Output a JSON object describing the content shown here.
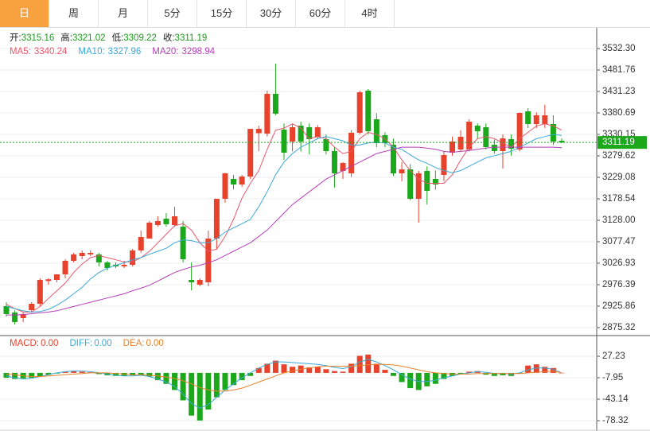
{
  "tabs": [
    "日",
    "周",
    "月",
    "5分",
    "15分",
    "30分",
    "60分",
    "4时"
  ],
  "active_tab": 0,
  "chart_data": [
    {
      "type": "candlestick",
      "up_color": "#e8412c",
      "down_color": "#1ba81b",
      "ylim": [
        2856.5,
        3575.4
      ],
      "yticks": [
        {
          "value": 3532.3,
          "label": "3532.30"
        },
        3481.76,
        3431.23,
        3380.69,
        3330.15,
        3279.62,
        3229.08,
        3178.54,
        {
          "value": 3128,
          "label": "3128.00"
        },
        3077.47,
        3026.93,
        2976.39,
        2925.86,
        2875.32
      ],
      "grid": true,
      "ohlc_labels": [
        "开:",
        "高:",
        "低:",
        "收:"
      ],
      "open": [
        2925.8,
        2910.8,
        2897.7,
        2916.4,
        2931.4,
        2985,
        2987.5,
        3000.6,
        3032.5,
        3043.7,
        3047.5,
        3047.5,
        3028.7,
        3023.1,
        3019.4,
        3023.1,
        3056.8,
        3084.9,
        3116.7,
        3131.7,
        3116.7,
        3113,
        2987.5,
        2976.3,
        2981.9,
        3084.9,
        3178.5,
        3225.3,
        3212.2,
        3230.9,
        3333,
        3332,
        3425.6,
        3341.4,
        3313.3,
        3350.7,
        3347,
        3324.5,
        3318.9,
        3290.8,
        3244,
        3238.4,
        3333.9,
        3433.1,
        3365.7,
        3328.3,
        3305.8,
        3238.4,
        3247.8,
        3178.5,
        3244,
        3225.3,
        3234.6,
        3287.1,
        3294.6,
        3294.6,
        3350.7,
        3347,
        3305.8,
        3290.8,
        3318.9,
        3294.6,
        3384.4,
        3354.5,
        3354.5,
        3354.5,
        3315.16
      ],
      "high": [
        2935,
        2916,
        2910.8,
        2935.1,
        2991.3,
        2991.3,
        3000.6,
        3036.2,
        3051.2,
        3056.8,
        3056.8,
        3051.2,
        3032.5,
        3028.7,
        3032.5,
        3060.6,
        3103.6,
        3126.1,
        3137.3,
        3145,
        3160,
        3126.1,
        3028.7,
        2991.3,
        3103.6,
        3178.5,
        3240,
        3234.6,
        3234.6,
        3343.2,
        3350.7,
        3433,
        3496.7,
        3356,
        3354,
        3360,
        3356,
        3352,
        3330,
        3300,
        3265,
        3340,
        3433,
        3437,
        3380,
        3335,
        3320,
        3265,
        3260,
        3244,
        3255,
        3245,
        3290,
        3325,
        3340,
        3365.7,
        3356,
        3356,
        3318,
        3330,
        3330,
        3382,
        3392,
        3382,
        3400,
        3375,
        3321.02
      ],
      "low": [
        2901.5,
        2882.7,
        2888.4,
        2910.8,
        2925.8,
        2976.3,
        2981.9,
        2991.3,
        3028.7,
        3036.2,
        3043.7,
        3019.4,
        3010,
        3015.6,
        3015.6,
        3019.4,
        3051.2,
        3084.9,
        3113,
        3113,
        3113,
        3028.7,
        2963.2,
        2972.6,
        2972.6,
        3060.6,
        3169.1,
        3201,
        3206.6,
        3225.3,
        3290.8,
        3325,
        3375.1,
        3270,
        3290,
        3290,
        3283,
        3318.9,
        3283,
        3205,
        3225.3,
        3230,
        3330,
        3330,
        3300,
        3300,
        3232,
        3220,
        3175,
        3122.3,
        3165,
        3200,
        3220,
        3280,
        3290,
        3290,
        3320,
        3295,
        3285,
        3250,
        3280,
        3290,
        3345,
        3345,
        3345,
        3305,
        3309.22
      ],
      "close": [
        2907.1,
        2888.4,
        2907.1,
        2931.4,
        2987.5,
        2989,
        3000.6,
        3032.5,
        3047.5,
        3051.2,
        3051.2,
        3028.7,
        3015.6,
        3019.4,
        3023.1,
        3056.8,
        3088.6,
        3122.3,
        3126.1,
        3118.6,
        3137.3,
        3036.2,
        2981.9,
        2987.5,
        3084.9,
        3178.5,
        3238.4,
        3212.2,
        3230.9,
        3343.2,
        3343.2,
        3425.6,
        3378.8,
        3287.1,
        3347,
        3313.3,
        3318.9,
        3347,
        3290.8,
        3238.4,
        3262.7,
        3333.9,
        3429.3,
        3337.6,
        3309.5,
        3309.5,
        3238.4,
        3247.8,
        3178.5,
        3238.4,
        3197.2,
        3212.2,
        3281.5,
        3313.3,
        3324.5,
        3360.1,
        3337.6,
        3300.2,
        3290.8,
        3320.8,
        3296.4,
        3380.7,
        3354.5,
        3375.1,
        3375.1,
        3313.3,
        3311.19
      ],
      "overlays": [
        {
          "name": "MA5:",
          "color": "#e9576a",
          "values": [
            2930,
            2920,
            2912,
            2912,
            2925,
            2944,
            2962,
            2980,
            3005,
            3025,
            3040,
            3045,
            3040,
            3035,
            3030,
            3030,
            3040,
            3055,
            3075,
            3095,
            3115,
            3120,
            3105,
            3075,
            3055,
            3060,
            3090,
            3130,
            3180,
            3215,
            3245,
            3295,
            3340,
            3345,
            3355,
            3345,
            3320,
            3325,
            3320,
            3300,
            3285,
            3290,
            3320,
            3335,
            3330,
            3320,
            3300,
            3270,
            3245,
            3225,
            3215,
            3215,
            3215,
            3235,
            3270,
            3300,
            3320,
            3325,
            3320,
            3310,
            3300,
            3320,
            3335,
            3350,
            3355,
            3350,
            3340.24
          ]
        },
        {
          "name": "MA10:",
          "color": "#3aa9d6",
          "values": [
            2925,
            2920,
            2915,
            2912,
            2913,
            2918,
            2928,
            2940,
            2955,
            2970,
            2990,
            3005,
            3015,
            3022,
            3028,
            3035,
            3040,
            3048,
            3055,
            3062,
            3075,
            3082,
            3080,
            3075,
            3075,
            3085,
            3100,
            3110,
            3120,
            3130,
            3160,
            3195,
            3235,
            3265,
            3285,
            3300,
            3310,
            3320,
            3325,
            3320,
            3315,
            3305,
            3305,
            3310,
            3312,
            3310,
            3300,
            3295,
            3282,
            3270,
            3262,
            3252,
            3245,
            3240,
            3245,
            3255,
            3265,
            3275,
            3280,
            3285,
            3290,
            3300,
            3310,
            3320,
            3325,
            3330,
            3327.96
          ]
        },
        {
          "name": "MA20:",
          "color": "#b43fb8",
          "values": [
            2905,
            2905,
            2906,
            2908,
            2910,
            2912,
            2915,
            2920,
            2925,
            2930,
            2935,
            2940,
            2945,
            2950,
            2955,
            2962,
            2968,
            2975,
            2985,
            2995,
            3005,
            3012,
            3018,
            3022,
            3028,
            3035,
            3045,
            3055,
            3065,
            3075,
            3090,
            3105,
            3125,
            3145,
            3165,
            3180,
            3195,
            3210,
            3225,
            3235,
            3245,
            3255,
            3265,
            3275,
            3285,
            3290,
            3295,
            3300,
            3300,
            3300,
            3298,
            3295,
            3290,
            3288,
            3290,
            3292,
            3295,
            3298,
            3300,
            3300,
            3300,
            3300,
            3300,
            3300,
            3300,
            3300,
            3298.94
          ]
        }
      ]
    },
    {
      "type": "macd",
      "up_color": "#e8412c",
      "down_color": "#1ba81b",
      "ylim": [
        -92.6,
        58.5
      ],
      "yticks": [
        27.23,
        -7.95,
        -43.14,
        -78.32
      ],
      "histogram": {
        "name": "MACD:",
        "color": "#e8412c",
        "value_label": "0.00",
        "values": [
          -8,
          -10,
          -9,
          -8,
          -6,
          -3,
          -1,
          2,
          3,
          2,
          1,
          -2,
          -4,
          -5,
          -5,
          -4,
          -3,
          -6,
          -12,
          -18,
          -28,
          -45,
          -70,
          -78,
          -60,
          -40,
          -28,
          -20,
          -12,
          -5,
          8,
          15,
          20,
          14,
          10,
          12,
          9,
          10,
          6,
          3,
          2,
          15,
          28,
          30,
          15,
          5,
          -5,
          -15,
          -25,
          -28,
          -22,
          -18,
          -10,
          -5,
          -2,
          2,
          3,
          -3,
          -5,
          -4,
          -5,
          -1,
          12,
          14,
          10,
          8,
          0
        ]
      },
      "lines": [
        {
          "name": "DIFF:",
          "color": "#3aa9d6",
          "value_label": "0.00",
          "values": [
            -5,
            -8,
            -10,
            -9,
            -6,
            -3,
            0,
            2,
            3,
            3,
            2,
            0,
            -2,
            -4,
            -5,
            -5,
            -4,
            -6,
            -10,
            -15,
            -22,
            -35,
            -50,
            -58,
            -52,
            -40,
            -28,
            -18,
            -8,
            0,
            8,
            14,
            18,
            18,
            17,
            16,
            15,
            14,
            12,
            9,
            7,
            10,
            18,
            22,
            18,
            12,
            5,
            -3,
            -10,
            -14,
            -14,
            -12,
            -8,
            -5,
            -2,
            0,
            2,
            1,
            -1,
            -1,
            -2,
            0,
            5,
            8,
            8,
            6,
            0
          ]
        },
        {
          "name": "DEA:",
          "color": "#e8822b",
          "value_label": "0.00",
          "values": [
            -2,
            -3,
            -5,
            -6,
            -6,
            -5,
            -4,
            -3,
            -2,
            -1,
            0,
            0,
            0,
            -1,
            -2,
            -3,
            -3,
            -4,
            -5,
            -7,
            -9,
            -13,
            -18,
            -24,
            -28,
            -30,
            -30,
            -28,
            -25,
            -20,
            -15,
            -10,
            -5,
            0,
            3,
            6,
            8,
            10,
            11,
            11,
            11,
            11,
            12,
            13,
            14,
            14,
            13,
            11,
            8,
            5,
            2,
            0,
            -1,
            -2,
            -2,
            -2,
            -1,
            -1,
            -1,
            -1,
            -1,
            -1,
            0,
            1,
            2,
            3,
            0
          ]
        }
      ]
    }
  ]
}
